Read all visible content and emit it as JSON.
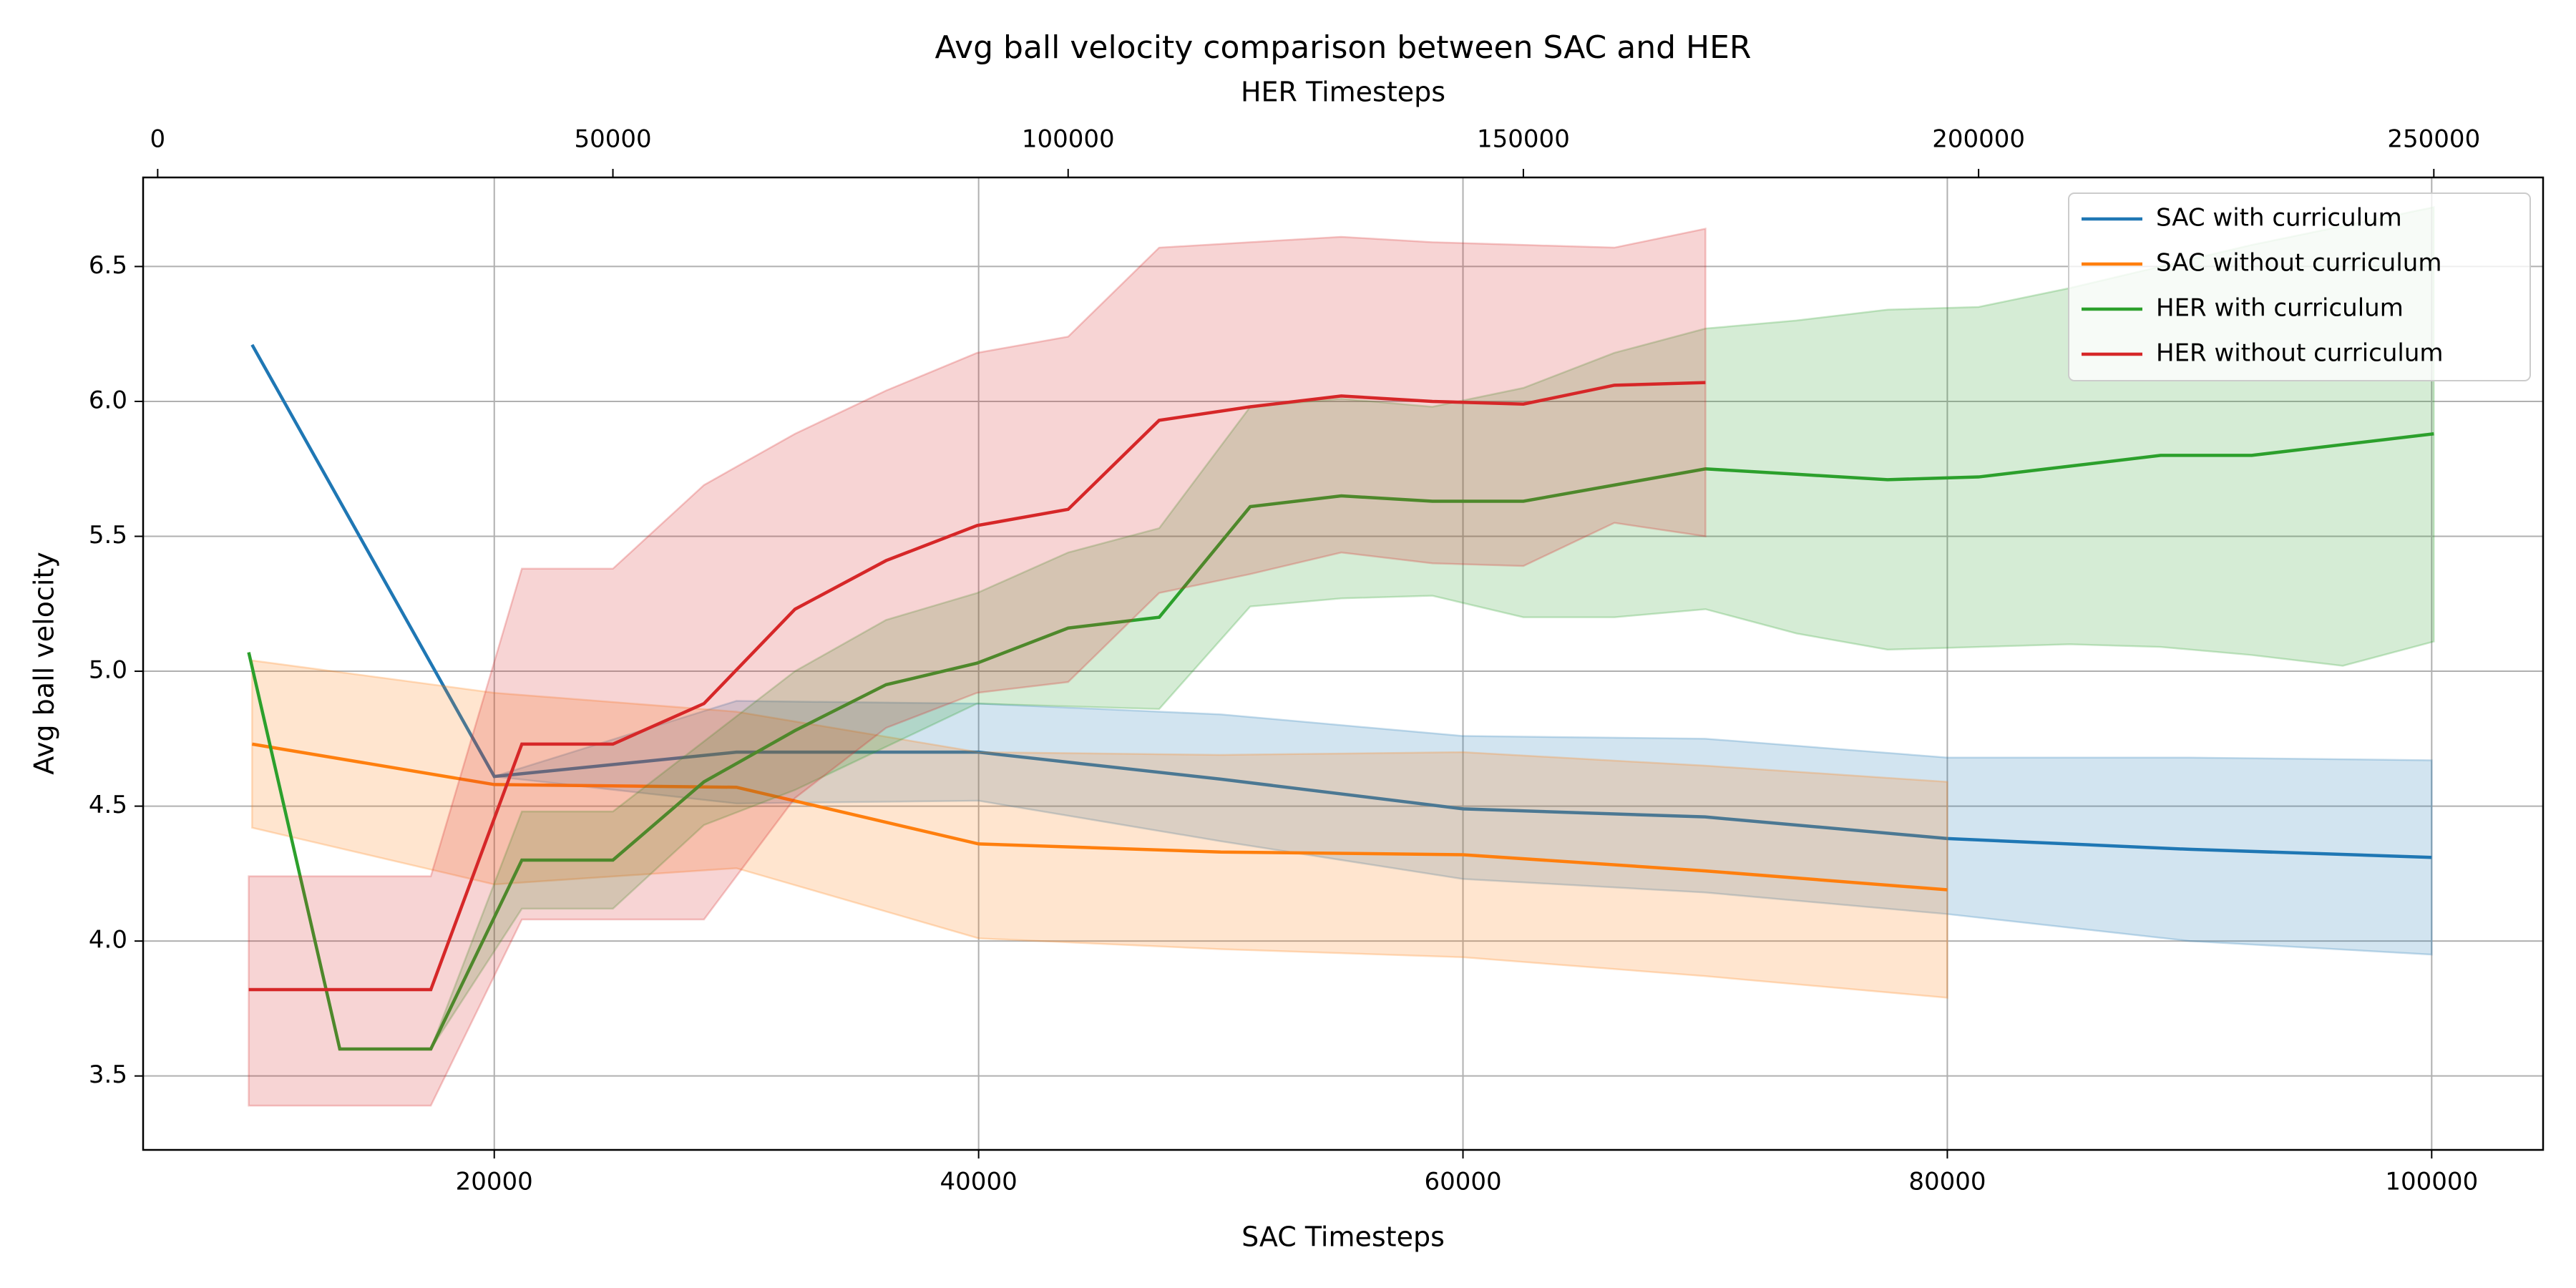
{
  "chart_data": {
    "type": "line",
    "title": "Avg ball velocity comparison between SAC and HER",
    "x_label": "SAC Timesteps",
    "x2_label": "HER Timesteps",
    "y_label": "Avg ball velocity",
    "xlim": [
      5500,
      104600
    ],
    "xticks": [
      20000,
      40000,
      60000,
      80000,
      100000
    ],
    "x2lim": [
      -1600,
      262000
    ],
    "x2ticks": [
      0,
      50000,
      100000,
      150000,
      200000,
      250000
    ],
    "ylim": [
      3.226,
      6.83
    ],
    "yticks": [
      3.5,
      {
        "value": 4,
        "label": "4.0"
      },
      4.5,
      {
        "value": 5,
        "label": "5.0"
      },
      5.5,
      {
        "value": 6,
        "label": "6.0"
      },
      6.5
    ],
    "grid": true,
    "legend": "upper right",
    "series": [
      {
        "name": "SAC with curriculum",
        "color": "#1f77b4",
        "axis": "x",
        "x": [
          10000,
          20000,
          30000,
          40000,
          50000,
          60000,
          70000,
          80000,
          90000,
          100000
        ],
        "values": [
          6.21,
          4.61,
          4.7,
          4.7,
          4.6,
          4.49,
          4.46,
          4.38,
          4.34,
          4.31
        ],
        "upper": [
          6.21,
          4.61,
          4.89,
          4.88,
          4.84,
          4.76,
          4.75,
          4.68,
          4.68,
          4.67
        ],
        "lower": [
          6.21,
          4.61,
          4.51,
          4.52,
          4.37,
          4.23,
          4.18,
          4.1,
          4.0,
          3.95
        ]
      },
      {
        "name": "SAC without curriculum",
        "color": "#ff7f0e",
        "axis": "x",
        "x": [
          10000,
          20000,
          30000,
          40000,
          50000,
          60000,
          70000,
          80000
        ],
        "values": [
          4.73,
          4.58,
          4.57,
          4.36,
          4.33,
          4.32,
          4.26,
          4.19
        ],
        "upper": [
          5.04,
          4.92,
          4.85,
          4.7,
          4.69,
          4.7,
          4.65,
          4.59
        ],
        "lower": [
          4.42,
          4.21,
          4.27,
          4.01,
          3.97,
          3.94,
          3.87,
          3.79
        ]
      },
      {
        "name": "HER with curriculum",
        "color": "#2ca02c",
        "axis": "x2",
        "x": [
          10000,
          20000,
          30000,
          40000,
          50000,
          60000,
          70000,
          80000,
          90000,
          100000,
          110000,
          120000,
          130000,
          140000,
          150000,
          160000,
          170000,
          180000,
          190000,
          200000,
          210000,
          220000,
          230000,
          240000,
          250000
        ],
        "values": [
          5.07,
          3.6,
          3.6,
          4.3,
          4.3,
          4.59,
          4.78,
          4.95,
          5.03,
          5.16,
          5.2,
          5.61,
          5.65,
          5.63,
          5.63,
          5.69,
          5.75,
          5.73,
          5.71,
          5.72,
          5.76,
          5.8,
          5.8,
          5.84,
          5.88
        ],
        "upper": [
          5.07,
          3.6,
          3.6,
          4.48,
          4.48,
          4.74,
          5.0,
          5.19,
          5.29,
          5.44,
          5.53,
          5.98,
          6.01,
          5.98,
          6.05,
          6.18,
          6.27,
          6.3,
          6.34,
          6.35,
          6.42,
          6.5,
          6.58,
          6.65,
          6.72
        ],
        "lower": [
          5.07,
          3.6,
          3.6,
          4.12,
          4.12,
          4.43,
          4.56,
          4.72,
          4.88,
          4.87,
          4.86,
          5.24,
          5.27,
          5.28,
          5.2,
          5.2,
          5.23,
          5.14,
          5.08,
          5.09,
          5.1,
          5.09,
          5.06,
          5.02,
          5.11
        ]
      },
      {
        "name": "HER without curriculum",
        "color": "#d62728",
        "axis": "x2",
        "x": [
          10000,
          20000,
          30000,
          40000,
          50000,
          60000,
          70000,
          80000,
          90000,
          100000,
          110000,
          120000,
          130000,
          140000,
          150000,
          160000,
          170000
        ],
        "values": [
          3.82,
          3.82,
          3.82,
          4.73,
          4.73,
          4.88,
          5.23,
          5.41,
          5.54,
          5.6,
          5.93,
          5.98,
          6.02,
          6.0,
          5.99,
          6.06,
          6.07
        ],
        "upper": [
          4.24,
          4.24,
          4.24,
          5.38,
          5.38,
          5.69,
          5.88,
          6.04,
          6.18,
          6.24,
          6.57,
          6.59,
          6.61,
          6.59,
          6.58,
          6.57,
          6.64
        ],
        "lower": [
          3.39,
          3.39,
          3.39,
          4.08,
          4.08,
          4.08,
          4.53,
          4.79,
          4.92,
          4.96,
          5.29,
          5.36,
          5.44,
          5.4,
          5.39,
          5.55,
          5.5
        ]
      }
    ]
  }
}
